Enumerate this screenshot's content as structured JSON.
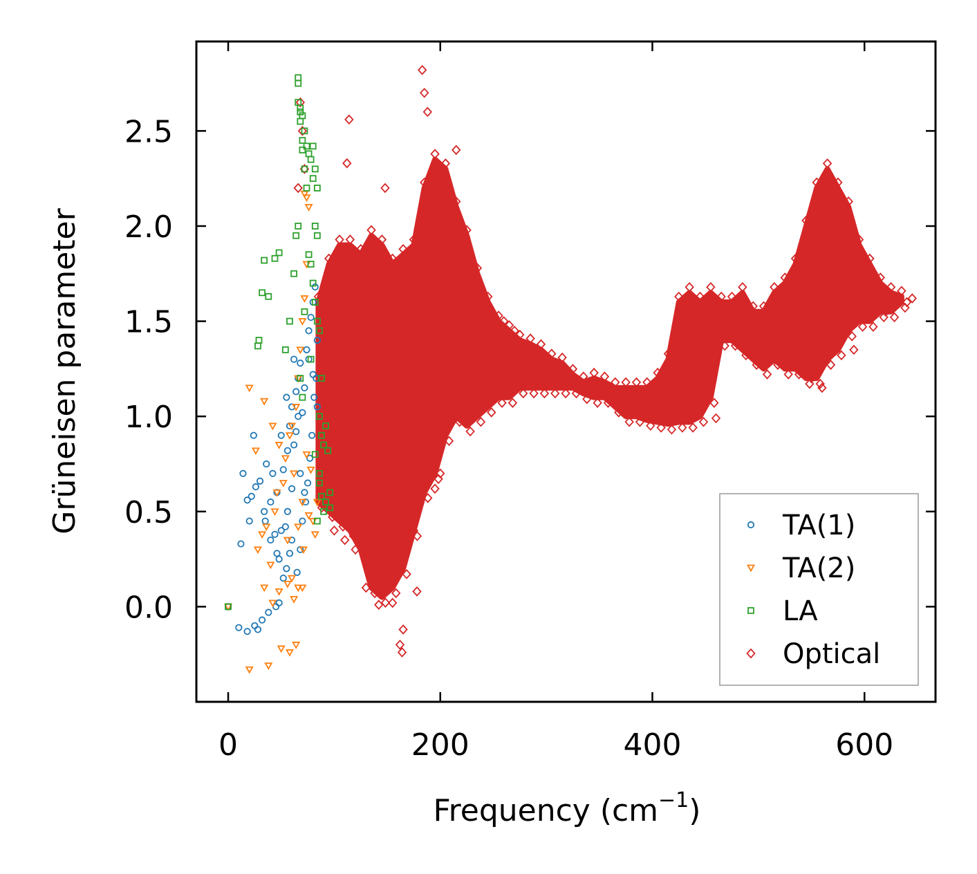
{
  "chart_data": {
    "type": "scatter",
    "title": "",
    "xlabel_main": "Frequency (cm",
    "xlabel_sup": "−1",
    "xlabel_close": ")",
    "ylabel": "Grüneisen parameter",
    "xlim": [
      -30,
      667
    ],
    "ylim": [
      -0.5,
      2.97
    ],
    "x_ticks": [
      0,
      200,
      400,
      600
    ],
    "x_tick_labels": [
      "0",
      "200",
      "400",
      "600"
    ],
    "y_ticks": [
      0.0,
      0.5,
      1.0,
      1.5,
      2.0,
      2.5
    ],
    "y_tick_labels": [
      "0.0",
      "0.5",
      "1.0",
      "1.5",
      "2.0",
      "2.5"
    ],
    "grid": false,
    "legend_position": "lower-right",
    "series": [
      {
        "name": "TA(1)",
        "marker": "circle",
        "color": "#1f77b4",
        "points": [
          [
            0,
            0
          ],
          [
            10,
            -0.11
          ],
          [
            18,
            -0.13
          ],
          [
            25,
            -0.1
          ],
          [
            28,
            -0.12
          ],
          [
            32,
            -0.07
          ],
          [
            38,
            -0.03
          ],
          [
            45,
            0
          ],
          [
            48,
            0.02
          ],
          [
            12,
            0.33
          ],
          [
            20,
            0.45
          ],
          [
            22,
            0.58
          ],
          [
            26,
            0.63
          ],
          [
            30,
            0.66
          ],
          [
            34,
            0.5
          ],
          [
            36,
            0.75
          ],
          [
            40,
            0.55
          ],
          [
            42,
            0.7
          ],
          [
            44,
            0.38
          ],
          [
            46,
            0.6
          ],
          [
            50,
            0.9
          ],
          [
            52,
            0.72
          ],
          [
            54,
            0.42
          ],
          [
            56,
            0.82
          ],
          [
            58,
            0.95
          ],
          [
            60,
            1.05
          ],
          [
            62,
            0.85
          ],
          [
            64,
            1.13
          ],
          [
            66,
            1.2
          ],
          [
            68,
            1.28
          ],
          [
            70,
            1.02
          ],
          [
            72,
            0.6
          ],
          [
            74,
            1.35
          ],
          [
            76,
            1.45
          ],
          [
            78,
            1.52
          ],
          [
            80,
            1.6
          ],
          [
            82,
            1.68
          ],
          [
            84,
            1.4
          ],
          [
            62,
            1.3
          ],
          [
            60,
            0.35
          ],
          [
            58,
            0.28
          ],
          [
            55,
            0.2
          ],
          [
            52,
            0.15
          ],
          [
            48,
            0.25
          ],
          [
            65,
            0.18
          ],
          [
            68,
            0.3
          ],
          [
            70,
            0.45
          ],
          [
            73,
            0.55
          ],
          [
            75,
            0.65
          ],
          [
            77,
            0.78
          ],
          [
            79,
            0.9
          ],
          [
            81,
            1.1
          ],
          [
            83,
            1.2
          ],
          [
            24,
            0.9
          ],
          [
            14,
            0.7
          ],
          [
            18,
            0.56
          ],
          [
            35,
            0.45
          ],
          [
            40,
            0.35
          ],
          [
            46,
            0.28
          ],
          [
            55,
            1.1
          ],
          [
            64,
            0.92
          ],
          [
            66,
            1.0
          ],
          [
            72,
            1.15
          ],
          [
            76,
            1.3
          ],
          [
            80,
            1.22
          ],
          [
            84,
            1.05
          ],
          [
            68,
            0.7
          ],
          [
            60,
            0.62
          ],
          [
            56,
            0.5
          ],
          [
            50,
            0.4
          ]
        ]
      },
      {
        "name": "TA(2)",
        "marker": "triangle-down",
        "color": "#ff7f0e",
        "points": [
          [
            0,
            0
          ],
          [
            20,
            -0.33
          ],
          [
            38,
            -0.31
          ],
          [
            50,
            -0.22
          ],
          [
            58,
            -0.24
          ],
          [
            64,
            -0.2
          ],
          [
            42,
            0.02
          ],
          [
            48,
            0.08
          ],
          [
            56,
            0.12
          ],
          [
            62,
            0.04
          ],
          [
            66,
            0.1
          ],
          [
            70,
            0.1
          ],
          [
            34,
            0.1
          ],
          [
            40,
            0.22
          ],
          [
            28,
            0.3
          ],
          [
            32,
            0.38
          ],
          [
            36,
            0.42
          ],
          [
            44,
            0.5
          ],
          [
            46,
            0.6
          ],
          [
            52,
            0.65
          ],
          [
            54,
            0.78
          ],
          [
            58,
            0.9
          ],
          [
            60,
            0.95
          ],
          [
            64,
            1.05
          ],
          [
            66,
            1.2
          ],
          [
            68,
            1.35
          ],
          [
            70,
            1.5
          ],
          [
            72,
            1.62
          ],
          [
            74,
            1.8
          ],
          [
            76,
            2.1
          ],
          [
            72,
            2.17
          ],
          [
            74,
            2.15
          ],
          [
            20,
            1.15
          ],
          [
            34,
            1.08
          ],
          [
            42,
            0.95
          ],
          [
            48,
            0.85
          ],
          [
            26,
            0.82
          ],
          [
            62,
            0.7
          ],
          [
            70,
            0.55
          ],
          [
            76,
            0.48
          ],
          [
            80,
            0.45
          ],
          [
            82,
            0.38
          ],
          [
            84,
            0.55
          ],
          [
            78,
            0.72
          ],
          [
            74,
            0.8
          ],
          [
            71,
            0.3
          ],
          [
            66,
            0.42
          ],
          [
            56,
            0.35
          ],
          [
            60,
            0.15
          ]
        ]
      },
      {
        "name": "LA",
        "marker": "square",
        "color": "#2ca02c",
        "points": [
          [
            0,
            0
          ],
          [
            28,
            1.37
          ],
          [
            29,
            1.4
          ],
          [
            32,
            1.65
          ],
          [
            34,
            1.82
          ],
          [
            38,
            1.63
          ],
          [
            44,
            1.83
          ],
          [
            48,
            1.86
          ],
          [
            54,
            1.35
          ],
          [
            58,
            1.5
          ],
          [
            62,
            1.75
          ],
          [
            64,
            1.95
          ],
          [
            66,
            2.0
          ],
          [
            66,
            2.75
          ],
          [
            66,
            2.65
          ],
          [
            68,
            2.6
          ],
          [
            68,
            2.55
          ],
          [
            70,
            2.4
          ],
          [
            70,
            2.45
          ],
          [
            72,
            2.5
          ],
          [
            72,
            2.3
          ],
          [
            74,
            2.2
          ],
          [
            76,
            2.38
          ],
          [
            78,
            2.35
          ],
          [
            80,
            2.42
          ],
          [
            82,
            2.3
          ],
          [
            84,
            2.2
          ],
          [
            80,
            2.25
          ],
          [
            82,
            2.0
          ],
          [
            84,
            1.95
          ],
          [
            76,
            1.85
          ],
          [
            78,
            1.8
          ],
          [
            80,
            1.7
          ],
          [
            82,
            1.6
          ],
          [
            84,
            1.5
          ],
          [
            86,
            1.45
          ],
          [
            88,
            1.2
          ],
          [
            86,
            1.0
          ],
          [
            88,
            0.9
          ],
          [
            90,
            0.85
          ],
          [
            92,
            0.95
          ],
          [
            94,
            0.82
          ],
          [
            96,
            0.6
          ],
          [
            92,
            0.55
          ],
          [
            90,
            0.5
          ],
          [
            84,
            0.45
          ],
          [
            86,
            0.65
          ],
          [
            82,
            0.8
          ],
          [
            78,
            1.3
          ],
          [
            72,
            1.55
          ],
          [
            70,
            1.1
          ],
          [
            68,
            1.2
          ],
          [
            86,
            0.7
          ],
          [
            88,
            0.58
          ],
          [
            96,
            0.52
          ],
          [
            66,
            2.78
          ],
          [
            68,
            2.62
          ],
          [
            70,
            2.58
          ],
          [
            74,
            2.42
          ]
        ]
      }
    ],
    "optical_band": {
      "name": "Optical",
      "marker": "diamond",
      "color": "#d62728",
      "frequency": [
        85,
        95,
        105,
        115,
        125,
        135,
        145,
        155,
        165,
        175,
        185,
        195,
        205,
        215,
        225,
        235,
        245,
        255,
        265,
        275,
        285,
        295,
        305,
        315,
        325,
        335,
        345,
        355,
        365,
        375,
        385,
        395,
        405,
        415,
        425,
        435,
        445,
        455,
        465,
        475,
        485,
        495,
        505,
        515,
        525,
        535,
        545,
        555,
        565,
        575,
        585,
        595,
        605,
        615,
        625,
        635
      ],
      "lower": [
        0.55,
        0.5,
        0.45,
        0.4,
        0.3,
        0.1,
        0.05,
        0.1,
        0.2,
        0.4,
        0.6,
        0.7,
        0.9,
        1.0,
        0.95,
        1.0,
        1.05,
        1.1,
        1.1,
        1.15,
        1.15,
        1.15,
        1.15,
        1.15,
        1.15,
        1.12,
        1.1,
        1.1,
        1.05,
        1.0,
        1.0,
        0.98,
        0.97,
        0.96,
        0.97,
        0.97,
        1.0,
        1.1,
        1.4,
        1.4,
        1.35,
        1.3,
        1.25,
        1.3,
        1.25,
        1.25,
        1.2,
        1.2,
        1.3,
        1.35,
        1.45,
        1.5,
        1.5,
        1.55,
        1.55,
        1.6
      ],
      "upper": [
        1.6,
        1.8,
        1.9,
        1.9,
        1.85,
        1.95,
        1.9,
        1.8,
        1.85,
        1.9,
        2.2,
        2.35,
        2.3,
        2.1,
        1.95,
        1.75,
        1.6,
        1.5,
        1.45,
        1.4,
        1.38,
        1.35,
        1.3,
        1.28,
        1.22,
        1.18,
        1.2,
        1.18,
        1.15,
        1.15,
        1.15,
        1.15,
        1.2,
        1.3,
        1.6,
        1.65,
        1.6,
        1.65,
        1.6,
        1.6,
        1.65,
        1.55,
        1.55,
        1.65,
        1.7,
        1.8,
        2.0,
        2.2,
        2.3,
        2.2,
        2.1,
        1.9,
        1.8,
        1.7,
        1.65,
        1.63
      ],
      "outliers": [
        [
          183,
          2.82
        ],
        [
          114,
          2.56
        ],
        [
          112,
          2.33
        ],
        [
          148,
          2.2
        ],
        [
          185,
          2.7
        ],
        [
          188,
          2.6
        ],
        [
          215,
          2.4
        ],
        [
          68,
          2.65
        ],
        [
          70,
          2.5
        ],
        [
          66,
          2.2
        ],
        [
          72,
          2.3
        ],
        [
          178,
          0.08
        ],
        [
          165,
          -0.12
        ],
        [
          162,
          -0.2
        ],
        [
          164,
          -0.24
        ],
        [
          142,
          0.01
        ],
        [
          155,
          0.02
        ],
        [
          130,
          0.1
        ],
        [
          200,
          0.7
        ],
        [
          195,
          0.62
        ],
        [
          175,
          0.4
        ],
        [
          460,
          0.99
        ],
        [
          645,
          1.62
        ],
        [
          640,
          1.6
        ],
        [
          590,
          1.35
        ],
        [
          575,
          1.4
        ],
        [
          560,
          1.15
        ],
        [
          550,
          1.2
        ],
        [
          620,
          1.55
        ],
        [
          260,
          1.5
        ],
        [
          270,
          1.45
        ],
        [
          110,
          0.35
        ],
        [
          100,
          0.4
        ],
        [
          120,
          0.3
        ]
      ]
    },
    "legend": [
      "TA(1)",
      "TA(2)",
      "LA",
      "Optical"
    ]
  }
}
